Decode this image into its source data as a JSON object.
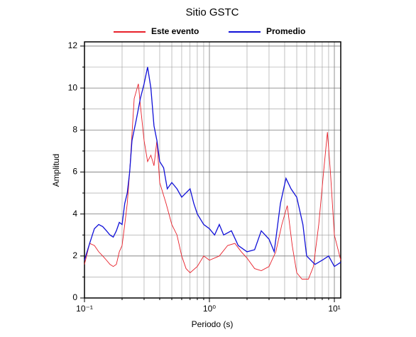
{
  "chart_data": {
    "type": "line",
    "title": "Sitio GSTC",
    "x_label": "Periodo (s)",
    "y_label": "Amplitud",
    "x_log": true,
    "grid": true,
    "xlim": [
      0.1,
      11.25
    ],
    "ylim": [
      0,
      12.2
    ],
    "xticks": [
      {
        "value": 0.1,
        "label": "10⁻¹"
      },
      {
        "value": 1,
        "label": "10⁰"
      },
      {
        "value": 10,
        "label": "10¹"
      }
    ],
    "x_minor_ticks": [
      0.2,
      0.3,
      0.4,
      0.5,
      0.6,
      0.7,
      0.8,
      0.9,
      2,
      3,
      4,
      5,
      6,
      7,
      8,
      9
    ],
    "yticks": [
      0,
      2,
      4,
      6,
      8,
      10,
      12
    ],
    "y_minor_ticks": [
      1,
      3,
      5,
      7,
      9,
      11
    ],
    "series": [
      {
        "name": "Este evento",
        "color": "#e8202a",
        "x": [
          0.1,
          0.11,
          0.12,
          0.13,
          0.14,
          0.15,
          0.16,
          0.17,
          0.18,
          0.19,
          0.2,
          0.21,
          0.22,
          0.23,
          0.24,
          0.25,
          0.27,
          0.28,
          0.3,
          0.32,
          0.34,
          0.36,
          0.38,
          0.4,
          0.45,
          0.5,
          0.55,
          0.6,
          0.65,
          0.7,
          0.8,
          0.9,
          1.0,
          1.2,
          1.4,
          1.6,
          1.8,
          2.0,
          2.3,
          2.6,
          3.0,
          3.4,
          3.8,
          4.2,
          4.6,
          5.0,
          5.5,
          6.2,
          6.8,
          7.5,
          8.2,
          8.8,
          9.3,
          10,
          11.25
        ],
        "values": [
          1.6,
          2.6,
          2.5,
          2.2,
          2.0,
          1.8,
          1.6,
          1.5,
          1.6,
          2.2,
          2.5,
          3.5,
          4.5,
          6,
          7.8,
          9.5,
          10.2,
          9.2,
          7.5,
          6.5,
          6.8,
          6.3,
          7.5,
          5.5,
          4.5,
          3.5,
          3.0,
          2.0,
          1.4,
          1.2,
          1.5,
          2.0,
          1.8,
          2.0,
          2.5,
          2.6,
          2.2,
          1.9,
          1.4,
          1.3,
          1.5,
          2.2,
          3.5,
          4.4,
          2.5,
          1.2,
          0.9,
          0.9,
          1.5,
          3.5,
          6.0,
          7.9,
          6,
          3,
          1.8
        ]
      },
      {
        "name": "Promedio",
        "color": "#1010d8",
        "x": [
          0.1,
          0.11,
          0.12,
          0.13,
          0.14,
          0.15,
          0.16,
          0.17,
          0.18,
          0.19,
          0.2,
          0.21,
          0.22,
          0.23,
          0.24,
          0.26,
          0.28,
          0.3,
          0.32,
          0.34,
          0.36,
          0.38,
          0.4,
          0.43,
          0.46,
          0.5,
          0.55,
          0.6,
          0.7,
          0.75,
          0.8,
          0.9,
          1.0,
          1.1,
          1.2,
          1.3,
          1.5,
          1.7,
          2.0,
          2.3,
          2.6,
          3.0,
          3.3,
          3.7,
          4.1,
          4.5,
          5.0,
          5.6,
          6.0,
          7.0,
          8.0,
          9.0,
          10.0,
          11.25
        ],
        "values": [
          1.8,
          2.6,
          3.3,
          3.5,
          3.4,
          3.2,
          3.0,
          2.9,
          3.2,
          3.6,
          3.5,
          4.5,
          5.0,
          6.0,
          7.5,
          8.5,
          9.5,
          10.2,
          11.0,
          10.0,
          8.2,
          7.5,
          6.5,
          6.2,
          5.2,
          5.5,
          5.2,
          4.8,
          5.2,
          4.5,
          4.0,
          3.5,
          3.3,
          3.0,
          3.5,
          3.0,
          3.2,
          2.5,
          2.2,
          2.3,
          3.2,
          2.8,
          2.2,
          4.5,
          5.7,
          5.2,
          4.8,
          3.5,
          2.0,
          1.6,
          1.8,
          2.0,
          1.5,
          1.7
        ]
      }
    ]
  }
}
